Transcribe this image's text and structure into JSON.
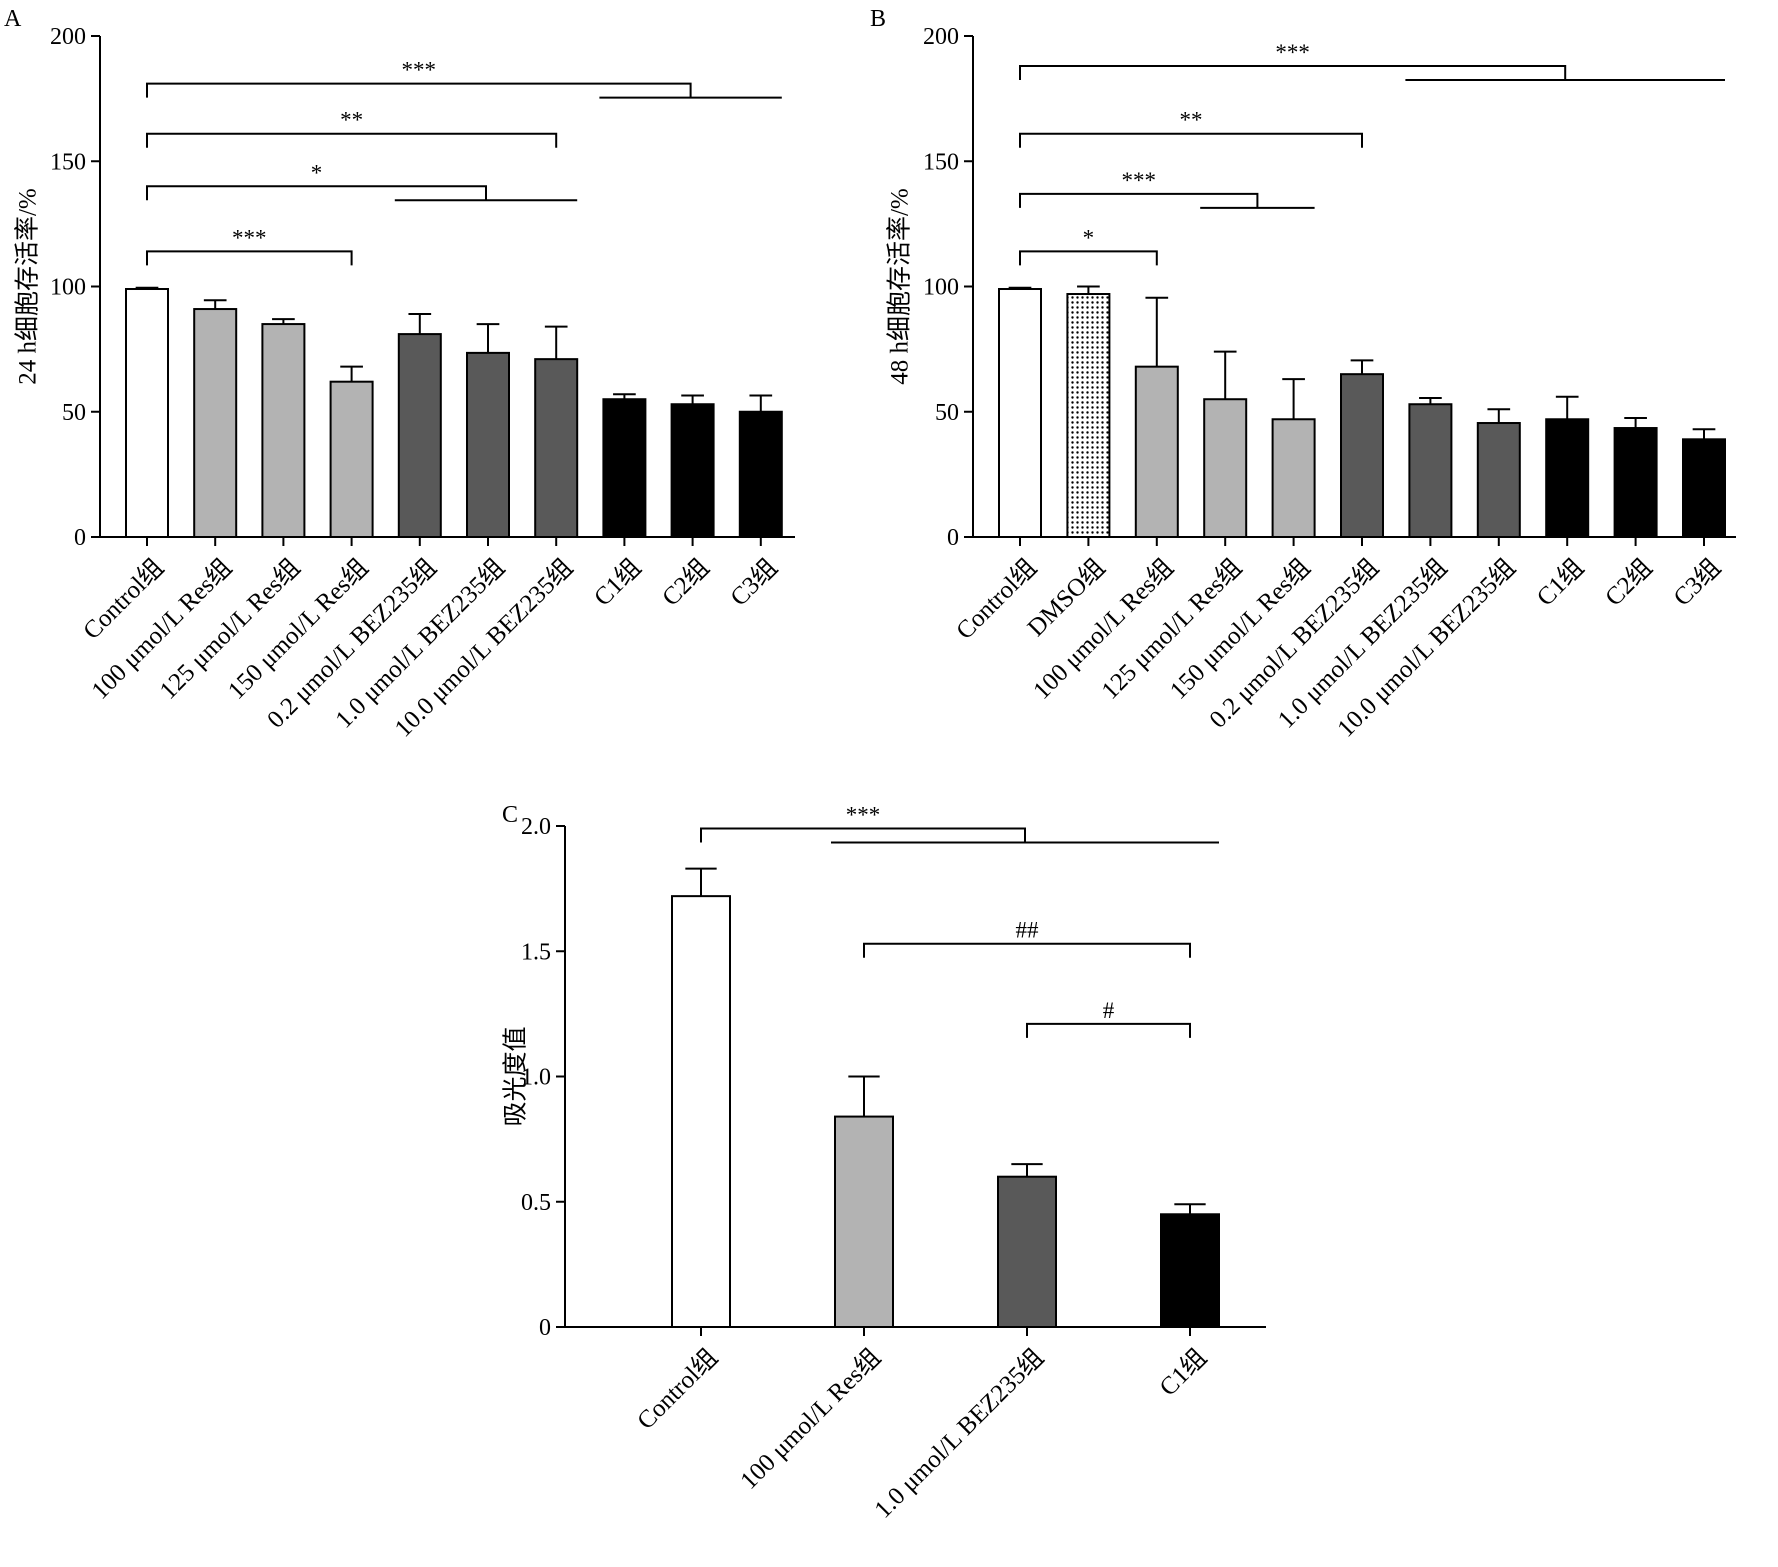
{
  "chart_data": [
    {
      "type": "bar",
      "panel": "A",
      "ylabel": "24 h细胞存活率/%",
      "ylim": [
        0,
        200
      ],
      "yticks": [
        0,
        50,
        100,
        150,
        200
      ],
      "categories": [
        "Control组",
        "100 μmol/L Res组",
        "125 μmol/L Res组",
        "150 μmol/L Res组",
        "0.2 μmol/L BEZ235组",
        "1.0 μmol/L BEZ235组",
        "10.0 μmol/L BEZ235组",
        "C1组",
        "C2组",
        "C3组"
      ],
      "values": [
        99,
        91,
        85,
        62,
        81,
        73.5,
        71,
        55,
        53,
        50
      ],
      "errors": [
        0.5,
        3.5,
        2,
        6,
        8,
        11.5,
        13,
        2,
        3.5,
        6.5
      ],
      "colors": [
        "#ffffff",
        "#b3b3b3",
        "#b3b3b3",
        "#b3b3b3",
        "#595959",
        "#595959",
        "#595959",
        "#000000",
        "#000000",
        "#000000"
      ],
      "significance": [
        {
          "label": "***",
          "from": 0,
          "to": 3,
          "y": 114
        },
        {
          "label": "*",
          "from": 0,
          "to": [
            4,
            6
          ],
          "y": 140
        },
        {
          "label": "**",
          "from": 0,
          "to": 6,
          "y": 161
        },
        {
          "label": "***",
          "from": 0,
          "to": [
            7,
            9
          ],
          "y": 181
        }
      ]
    },
    {
      "type": "bar",
      "panel": "B",
      "ylabel": "48 h细胞存活率/%",
      "ylim": [
        0,
        200
      ],
      "yticks": [
        0,
        50,
        100,
        150,
        200
      ],
      "categories": [
        "Control组",
        "DMSO组",
        "100 μmol/L Res组",
        "125 μmol/L Res组",
        "150 μmol/L Res组",
        "0.2 μmol/L BEZ235组",
        "1.0 μmol/L BEZ235组",
        "10.0 μmol/L BEZ235组",
        "C1组",
        "C2组",
        "C3组"
      ],
      "values": [
        99,
        97,
        68,
        55,
        47,
        65,
        53,
        45.5,
        47,
        43.5,
        39
      ],
      "errors": [
        0.5,
        3,
        27.5,
        19,
        16,
        5.5,
        2.5,
        5.5,
        9,
        4,
        4
      ],
      "colors": [
        "#ffffff",
        "dotted",
        "#b3b3b3",
        "#b3b3b3",
        "#b3b3b3",
        "#595959",
        "#595959",
        "#595959",
        "#000000",
        "#000000",
        "#000000"
      ],
      "significance": [
        {
          "label": "*",
          "from": 0,
          "to": 2,
          "y": 114
        },
        {
          "label": "***",
          "from": 0,
          "to": [
            3,
            4
          ],
          "y": 137
        },
        {
          "label": "**",
          "from": 0,
          "to": 5,
          "y": 161
        },
        {
          "label": "***",
          "from": 0,
          "to": [
            6,
            10
          ],
          "y": 188
        }
      ]
    },
    {
      "type": "bar",
      "panel": "C",
      "ylabel": "吸光度值",
      "ylim": [
        0,
        2.0
      ],
      "yticks": [
        "0",
        "0.5",
        "1.0",
        "1.5",
        "2.0"
      ],
      "categories": [
        "Control组",
        "100 μmol/L Res组",
        "1.0 μmol/L BEZ235组",
        "C1组"
      ],
      "values": [
        1.72,
        0.84,
        0.6,
        0.45
      ],
      "errors": [
        0.11,
        0.16,
        0.05,
        0.04
      ],
      "colors": [
        "#ffffff",
        "#b3b3b3",
        "#595959",
        "#000000"
      ],
      "significance": [
        {
          "label": "#",
          "from": 2,
          "to": 3,
          "y": 1.21
        },
        {
          "label": "##",
          "from": 1,
          "to": 3,
          "y": 1.53
        },
        {
          "label": "***",
          "from": 0,
          "to": [
            1,
            3
          ],
          "y": 1.99
        }
      ]
    }
  ]
}
